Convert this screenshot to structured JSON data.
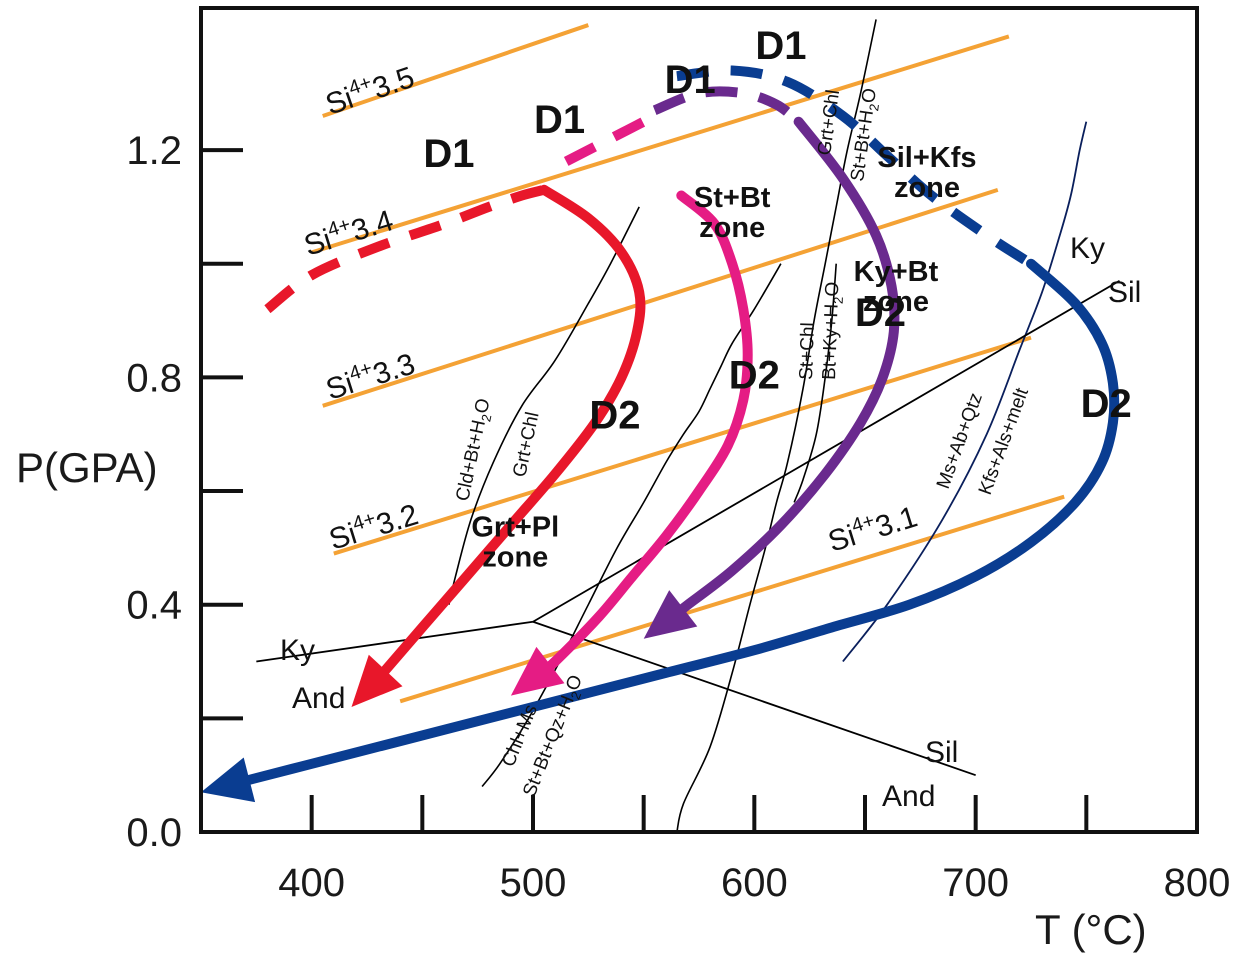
{
  "chart_data": {
    "type": "line",
    "title": "",
    "xlabel": "T (°C)",
    "ylabel": "P(GPA)",
    "xlim": [
      350,
      800
    ],
    "ylim": [
      0.0,
      1.45
    ],
    "x_tick_labels": [
      {
        "value": 400,
        "label": "400"
      },
      {
        "value": 500,
        "label": "500"
      },
      {
        "value": 600,
        "label": "600"
      },
      {
        "value": 700,
        "label": "700"
      },
      {
        "value": 800,
        "label": "800"
      }
    ],
    "x_minor_ticks": [
      400,
      450,
      500,
      550,
      600,
      650,
      700,
      750
    ],
    "y_tick_labels": [
      {
        "value": 0.0,
        "label": "0.0"
      },
      {
        "value": 0.4,
        "label": "0.4"
      },
      {
        "value": 0.8,
        "label": "0.8"
      },
      {
        "value": 1.2,
        "label": "1.2"
      }
    ],
    "y_minor_ticks": [
      0.2,
      0.4,
      0.6,
      0.8,
      1.0,
      1.2
    ],
    "si_isopleths": [
      {
        "label": "Si4+3.5",
        "sup": "4+",
        "value": "3.5",
        "x": [
          405,
          525
        ],
        "y": [
          1.26,
          1.42
        ]
      },
      {
        "label": "Si4+3.4",
        "sup": "4+",
        "value": "3.4",
        "x": [
          400,
          715
        ],
        "y": [
          1.02,
          1.4
        ]
      },
      {
        "label": "Si4+3.3",
        "sup": "4+",
        "value": "3.3",
        "x": [
          405,
          710
        ],
        "y": [
          0.75,
          1.13
        ]
      },
      {
        "label": "Si4+3.2",
        "sup": "4+",
        "value": "3.2",
        "x": [
          410,
          725
        ],
        "y": [
          0.49,
          0.87
        ]
      },
      {
        "label": "Si4+3.1",
        "sup": "4+",
        "value": "3.1",
        "x": [
          440,
          740
        ],
        "y": [
          0.23,
          0.59
        ]
      }
    ],
    "reactions": [
      {
        "label": "Grt+Chl",
        "x": [
          565,
          568,
          580,
          590,
          598,
          605,
          610,
          615,
          622,
          627,
          632,
          637,
          642,
          648,
          655
        ],
        "y": [
          0.0,
          0.05,
          0.15,
          0.28,
          0.4,
          0.5,
          0.58,
          0.65,
          0.78,
          0.9,
          1.0,
          1.1,
          1.2,
          1.3,
          1.43
        ]
      },
      {
        "label": "St+Bt+H2O",
        "x": [],
        "y": []
      },
      {
        "label": "Cld+Bt+H2O",
        "x": [
          462,
          465,
          472,
          482,
          495,
          510,
          525,
          535,
          548
        ],
        "y": [
          0.4,
          0.45,
          0.55,
          0.65,
          0.75,
          0.83,
          0.93,
          1.0,
          1.1
        ]
      },
      {
        "label": "Grt+Chl",
        "x": [],
        "y": []
      },
      {
        "label": "Chl+Ms",
        "x": [
          477,
          485,
          498,
          512,
          525,
          538,
          550,
          560,
          568,
          575,
          580,
          585,
          590,
          600,
          612
        ],
        "y": [
          0.08,
          0.12,
          0.2,
          0.3,
          0.4,
          0.5,
          0.58,
          0.65,
          0.7,
          0.74,
          0.78,
          0.82,
          0.86,
          0.92,
          1.0
        ]
      },
      {
        "label": "St+Bt+Qz+H2O",
        "x": [],
        "y": []
      },
      {
        "label": "St+Chl",
        "x": [
          618,
          622,
          628,
          632,
          635,
          637
        ],
        "y": [
          0.58,
          0.62,
          0.7,
          0.8,
          0.9,
          1.0
        ]
      },
      {
        "label": "Bt+Ky+H2O",
        "x": [],
        "y": []
      },
      {
        "label": "Ms+Ab+Qtz",
        "x": [
          640,
          660,
          685,
          705,
          720,
          730,
          738,
          743,
          747,
          750
        ],
        "y": [
          0.3,
          0.4,
          0.55,
          0.7,
          0.85,
          0.95,
          1.05,
          1.12,
          1.2,
          1.25
        ]
      },
      {
        "label": "Kfs+Als+melt",
        "x": [],
        "y": []
      }
    ],
    "phase_boundaries": [
      {
        "name": "Ky-And",
        "labels": [
          "Ky",
          "And"
        ],
        "x": [
          375,
          500
        ],
        "y": [
          0.3,
          0.37
        ]
      },
      {
        "name": "Ky-Sil",
        "labels": [
          "Ky",
          "Sil"
        ],
        "x": [
          500,
          765
        ],
        "y": [
          0.37,
          0.97
        ]
      },
      {
        "name": "And-Sil",
        "labels": [
          "Sil",
          "And"
        ],
        "x": [
          500,
          700
        ],
        "y": [
          0.37,
          0.1
        ]
      }
    ],
    "series": [
      {
        "name": "",
        "color": "#e8172a",
        "d1": {
          "x": [
            380,
            400,
            430,
            460,
            480,
            495,
            505
          ],
          "y": [
            0.92,
            0.98,
            1.03,
            1.07,
            1.1,
            1.12,
            1.13
          ]
        },
        "d2": {
          "x": [
            505,
            525,
            540,
            548,
            547,
            540,
            528,
            510,
            490,
            470,
            450,
            430,
            418
          ],
          "y": [
            1.13,
            1.08,
            1.02,
            0.95,
            0.88,
            0.8,
            0.72,
            0.63,
            0.54,
            0.45,
            0.36,
            0.27,
            0.22
          ]
        }
      },
      {
        "name": "",
        "color": "#e51c84",
        "d1": {
          "x": [
            515,
            535,
            555
          ],
          "y": [
            1.18,
            1.22,
            1.26
          ]
        },
        "d2": {
          "x": [
            567,
            582,
            590,
            595,
            597,
            595,
            588,
            575,
            560,
            545,
            530,
            510,
            490
          ],
          "y": [
            1.12,
            1.07,
            1.0,
            0.92,
            0.84,
            0.76,
            0.68,
            0.6,
            0.52,
            0.45,
            0.38,
            0.3,
            0.24
          ]
        }
      },
      {
        "name": "",
        "color": "#6a2a8e",
        "d1": {
          "x": [
            555,
            575,
            595,
            610,
            620
          ],
          "y": [
            1.27,
            1.3,
            1.3,
            1.28,
            1.25
          ]
        },
        "d2": {
          "x": [
            620,
            640,
            655,
            662,
            663,
            658,
            648,
            632,
            612,
            590,
            570,
            550
          ],
          "y": [
            1.25,
            1.15,
            1.05,
            0.96,
            0.88,
            0.8,
            0.72,
            0.63,
            0.54,
            0.46,
            0.4,
            0.34
          ]
        }
      },
      {
        "name": "",
        "color": "#0a3d91",
        "d1": {
          "x": [
            565,
            590,
            615,
            640,
            660,
            680,
            705,
            725
          ],
          "y": [
            1.33,
            1.34,
            1.32,
            1.26,
            1.19,
            1.12,
            1.05,
            1.0
          ]
        },
        "d2": {
          "x": [
            725,
            745,
            757,
            762,
            762,
            757,
            745,
            725,
            700,
            670,
            635,
            600,
            560,
            520,
            480,
            440,
            400,
            350
          ],
          "y": [
            1.0,
            0.93,
            0.86,
            0.79,
            0.72,
            0.65,
            0.58,
            0.51,
            0.45,
            0.4,
            0.36,
            0.32,
            0.28,
            0.24,
            0.2,
            0.16,
            0.12,
            0.07
          ]
        }
      }
    ],
    "annotations": [
      {
        "text": "D1",
        "x": 462,
        "y": 1.17
      },
      {
        "text": "D1",
        "x": 512,
        "y": 1.23
      },
      {
        "text": "D1",
        "x": 571,
        "y": 1.3
      },
      {
        "text": "D1",
        "x": 612,
        "y": 1.36
      },
      {
        "text": "D2",
        "x": 537,
        "y": 0.71
      },
      {
        "text": "D2",
        "x": 600,
        "y": 0.78
      },
      {
        "text": "D2",
        "x": 657,
        "y": 0.89
      },
      {
        "text": "D2",
        "x": 759,
        "y": 0.73
      },
      {
        "text": "Grt+Pl",
        "text2": "zone",
        "x": 492,
        "y": 0.52
      },
      {
        "text": "St+Bt",
        "text2": "zone",
        "x": 590,
        "y": 1.1
      },
      {
        "text": "Ky+Bt",
        "text2": "zone",
        "x": 664,
        "y": 0.97
      },
      {
        "text": "Sil+Kfs",
        "text2": "zone",
        "x": 678,
        "y": 1.17
      }
    ],
    "colors": {
      "isopleth": "#f4a235",
      "reaction": "#000000",
      "phase_boundary": "#000000",
      "melt_reaction": "#0a1f5c"
    },
    "grid": false,
    "legend": "none"
  }
}
